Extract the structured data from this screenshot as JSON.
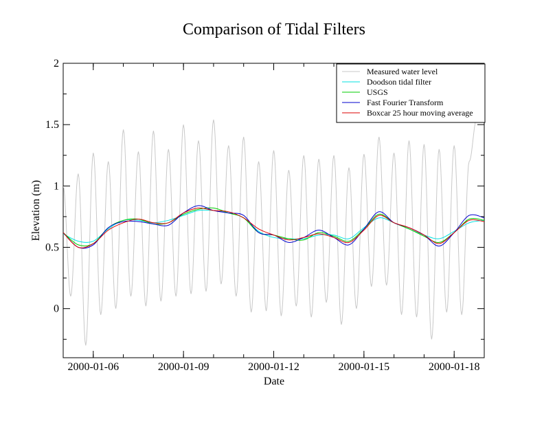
{
  "chart_data": {
    "type": "line",
    "title": "Comparison of Tidal Filters",
    "xlabel": "Date",
    "ylabel": "Elevation (m)",
    "xlim": [
      "2000-01-05",
      "2000-01-19"
    ],
    "ylim": [
      -0.4,
      2
    ],
    "x_ticks": [
      "2000-01-06",
      "2000-01-09",
      "2000-01-12",
      "2000-01-15",
      "2000-01-18"
    ],
    "y_ticks": [
      "0",
      "0.5",
      "1",
      "1.5",
      "2"
    ],
    "grid": false,
    "legend_position": "top-right",
    "series": [
      {
        "name": "Measured water level",
        "color": "#c8c8c8",
        "description_points": [
          [
            "2000-01-05",
            1.0
          ],
          [
            "2000-01-05.25",
            0.1
          ],
          [
            "2000-01-05.5",
            1.1
          ],
          [
            "2000-01-05.75",
            -0.3
          ],
          [
            "2000-01-06.0",
            1.27
          ],
          [
            "2000-01-06.25",
            -0.05
          ],
          [
            "2000-01-06.5",
            1.2
          ],
          [
            "2000-01-06.75",
            0.0
          ],
          [
            "2000-01-07.0",
            1.46
          ],
          [
            "2000-01-07.25",
            0.1
          ],
          [
            "2000-01-07.5",
            1.28
          ],
          [
            "2000-01-07.75",
            0.02
          ],
          [
            "2000-01-08.0",
            1.45
          ],
          [
            "2000-01-08.25",
            0.06
          ],
          [
            "2000-01-08.5",
            1.3
          ],
          [
            "2000-01-08.75",
            0.1
          ],
          [
            "2000-01-09.0",
            1.5
          ],
          [
            "2000-01-09.25",
            0.12
          ],
          [
            "2000-01-09.5",
            1.37
          ],
          [
            "2000-01-09.75",
            0.14
          ],
          [
            "2000-01-10.0",
            1.54
          ],
          [
            "2000-01-10.25",
            0.2
          ],
          [
            "2000-01-10.5",
            1.33
          ],
          [
            "2000-01-10.75",
            0.1
          ],
          [
            "2000-01-11.0",
            1.4
          ],
          [
            "2000-01-11.25",
            -0.03
          ],
          [
            "2000-01-11.5",
            1.2
          ],
          [
            "2000-01-11.75",
            -0.02
          ],
          [
            "2000-01-12.0",
            1.29
          ],
          [
            "2000-01-12.25",
            -0.06
          ],
          [
            "2000-01-12.5",
            1.13
          ],
          [
            "2000-01-12.75",
            0.02
          ],
          [
            "2000-01-13.0",
            1.25
          ],
          [
            "2000-01-13.25",
            -0.07
          ],
          [
            "2000-01-13.5",
            1.22
          ],
          [
            "2000-01-13.75",
            0.05
          ],
          [
            "2000-01-14.0",
            1.25
          ],
          [
            "2000-01-14.25",
            -0.13
          ],
          [
            "2000-01-14.5",
            1.15
          ],
          [
            "2000-01-14.75",
            0.0
          ],
          [
            "2000-01-15.0",
            1.26
          ],
          [
            "2000-01-15.25",
            0.18
          ],
          [
            "2000-01-15.5",
            1.4
          ],
          [
            "2000-01-15.75",
            0.19
          ],
          [
            "2000-01-16.0",
            1.27
          ],
          [
            "2000-01-16.25",
            -0.05
          ],
          [
            "2000-01-16.5",
            1.37
          ],
          [
            "2000-01-16.75",
            -0.07
          ],
          [
            "2000-01-17.0",
            1.34
          ],
          [
            "2000-01-17.25",
            -0.25
          ],
          [
            "2000-01-17.5",
            1.3
          ],
          [
            "2000-01-17.75",
            -0.03
          ],
          [
            "2000-01-18.0",
            1.33
          ],
          [
            "2000-01-18.25",
            -0.05
          ],
          [
            "2000-01-18.5",
            1.2
          ],
          [
            "2000-01-18.75",
            1.55
          ]
        ]
      },
      {
        "name": "Doodson tidal filter",
        "color": "#00e0e0",
        "points": [
          [
            "2000-01-05",
            0.61
          ],
          [
            "2000-01-05.5",
            0.55
          ],
          [
            "2000-01-06",
            0.55
          ],
          [
            "2000-01-06.5",
            0.65
          ],
          [
            "2000-01-07",
            0.72
          ],
          [
            "2000-01-07.5",
            0.72
          ],
          [
            "2000-01-08",
            0.7
          ],
          [
            "2000-01-08.5",
            0.72
          ],
          [
            "2000-01-09",
            0.76
          ],
          [
            "2000-01-09.5",
            0.8
          ],
          [
            "2000-01-10",
            0.8
          ],
          [
            "2000-01-10.5",
            0.78
          ],
          [
            "2000-01-11",
            0.74
          ],
          [
            "2000-01-11.5",
            0.63
          ],
          [
            "2000-01-12",
            0.58
          ],
          [
            "2000-01-12.5",
            0.57
          ],
          [
            "2000-01-13",
            0.57
          ],
          [
            "2000-01-13.5",
            0.6
          ],
          [
            "2000-01-14",
            0.6
          ],
          [
            "2000-01-14.5",
            0.57
          ],
          [
            "2000-01-15",
            0.66
          ],
          [
            "2000-01-15.5",
            0.74
          ],
          [
            "2000-01-16",
            0.7
          ],
          [
            "2000-01-16.5",
            0.65
          ],
          [
            "2000-01-17",
            0.6
          ],
          [
            "2000-01-17.5",
            0.57
          ],
          [
            "2000-01-18",
            0.63
          ],
          [
            "2000-01-18.5",
            0.7
          ],
          [
            "2000-01-19",
            0.72
          ]
        ]
      },
      {
        "name": "USGS",
        "color": "#00cc00",
        "points": [
          [
            "2000-01-05",
            0.62
          ],
          [
            "2000-01-05.5",
            0.52
          ],
          [
            "2000-01-06",
            0.53
          ],
          [
            "2000-01-06.5",
            0.66
          ],
          [
            "2000-01-07",
            0.72
          ],
          [
            "2000-01-07.5",
            0.73
          ],
          [
            "2000-01-08",
            0.69
          ],
          [
            "2000-01-08.5",
            0.7
          ],
          [
            "2000-01-09",
            0.77
          ],
          [
            "2000-01-09.5",
            0.81
          ],
          [
            "2000-01-10",
            0.82
          ],
          [
            "2000-01-10.5",
            0.78
          ],
          [
            "2000-01-11",
            0.74
          ],
          [
            "2000-01-11.5",
            0.62
          ],
          [
            "2000-01-12",
            0.6
          ],
          [
            "2000-01-12.5",
            0.57
          ],
          [
            "2000-01-13",
            0.56
          ],
          [
            "2000-01-13.5",
            0.62
          ],
          [
            "2000-01-14",
            0.59
          ],
          [
            "2000-01-14.5",
            0.55
          ],
          [
            "2000-01-15",
            0.65
          ],
          [
            "2000-01-15.5",
            0.77
          ],
          [
            "2000-01-16",
            0.7
          ],
          [
            "2000-01-16.5",
            0.65
          ],
          [
            "2000-01-17",
            0.59
          ],
          [
            "2000-01-17.5",
            0.54
          ],
          [
            "2000-01-18",
            0.62
          ],
          [
            "2000-01-18.5",
            0.73
          ],
          [
            "2000-01-19",
            0.72
          ]
        ]
      },
      {
        "name": "Fast Fourier Transform",
        "color": "#0000cc",
        "points": [
          [
            "2000-01-05",
            0.62
          ],
          [
            "2000-01-05.5",
            0.5
          ],
          [
            "2000-01-06",
            0.52
          ],
          [
            "2000-01-06.5",
            0.66
          ],
          [
            "2000-01-07",
            0.71
          ],
          [
            "2000-01-07.5",
            0.71
          ],
          [
            "2000-01-08",
            0.69
          ],
          [
            "2000-01-08.5",
            0.68
          ],
          [
            "2000-01-09",
            0.78
          ],
          [
            "2000-01-09.5",
            0.84
          ],
          [
            "2000-01-10",
            0.8
          ],
          [
            "2000-01-10.5",
            0.78
          ],
          [
            "2000-01-11",
            0.76
          ],
          [
            "2000-01-11.5",
            0.62
          ],
          [
            "2000-01-12",
            0.6
          ],
          [
            "2000-01-12.5",
            0.54
          ],
          [
            "2000-01-13",
            0.58
          ],
          [
            "2000-01-13.5",
            0.64
          ],
          [
            "2000-01-14",
            0.58
          ],
          [
            "2000-01-14.5",
            0.52
          ],
          [
            "2000-01-15",
            0.65
          ],
          [
            "2000-01-15.5",
            0.79
          ],
          [
            "2000-01-16",
            0.7
          ],
          [
            "2000-01-16.5",
            0.66
          ],
          [
            "2000-01-17",
            0.6
          ],
          [
            "2000-01-17.5",
            0.51
          ],
          [
            "2000-01-18",
            0.62
          ],
          [
            "2000-01-18.5",
            0.76
          ],
          [
            "2000-01-19",
            0.74
          ]
        ]
      },
      {
        "name": "Boxcar 25 hour moving average",
        "color": "#dd0000",
        "points": [
          [
            "2000-01-05",
            0.62
          ],
          [
            "2000-01-05.5",
            0.5
          ],
          [
            "2000-01-06",
            0.53
          ],
          [
            "2000-01-06.5",
            0.64
          ],
          [
            "2000-01-07",
            0.7
          ],
          [
            "2000-01-07.5",
            0.73
          ],
          [
            "2000-01-08",
            0.7
          ],
          [
            "2000-01-08.5",
            0.7
          ],
          [
            "2000-01-09",
            0.78
          ],
          [
            "2000-01-09.5",
            0.82
          ],
          [
            "2000-01-10",
            0.8
          ],
          [
            "2000-01-10.5",
            0.79
          ],
          [
            "2000-01-11",
            0.74
          ],
          [
            "2000-01-11.5",
            0.65
          ],
          [
            "2000-01-12",
            0.6
          ],
          [
            "2000-01-12.5",
            0.56
          ],
          [
            "2000-01-13",
            0.58
          ],
          [
            "2000-01-13.5",
            0.61
          ],
          [
            "2000-01-14",
            0.58
          ],
          [
            "2000-01-14.5",
            0.54
          ],
          [
            "2000-01-15",
            0.64
          ],
          [
            "2000-01-15.5",
            0.76
          ],
          [
            "2000-01-16",
            0.7
          ],
          [
            "2000-01-16.5",
            0.66
          ],
          [
            "2000-01-17",
            0.6
          ],
          [
            "2000-01-17.5",
            0.53
          ],
          [
            "2000-01-18",
            0.62
          ],
          [
            "2000-01-18.5",
            0.72
          ],
          [
            "2000-01-19",
            0.71
          ]
        ]
      }
    ]
  }
}
